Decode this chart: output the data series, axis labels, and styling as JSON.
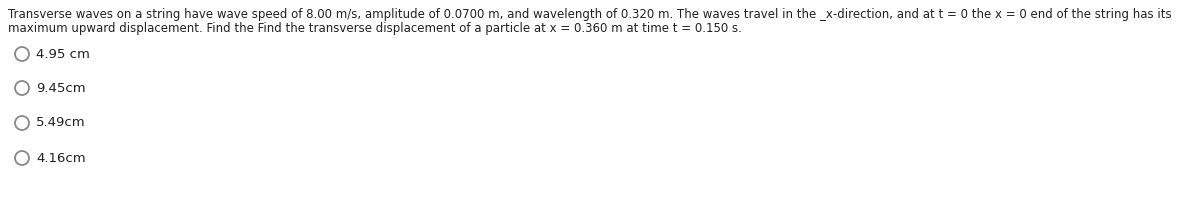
{
  "question_text_line1": "Transverse waves on a string have wave speed of 8.00 m/s, amplitude of 0.0700 m, and wavelength of 0.320 m. The waves travel in the _x-direction, and at t = 0 the x = 0 end of the string has its",
  "question_text_line2": "maximum upward displacement. Find the Find the transverse displacement of a particle at x = 0.360 m at time t = 0.150 s.",
  "options": [
    "4.95 cm",
    "9.45cm",
    "5.49cm",
    "4.16cm"
  ],
  "text_color": "#222222",
  "option_color": "#222222",
  "circle_edge_color": "#888888",
  "background_color": "#ffffff",
  "question_fontsize": 8.5,
  "option_fontsize": 9.5,
  "fig_width": 12.0,
  "fig_height": 2.02
}
